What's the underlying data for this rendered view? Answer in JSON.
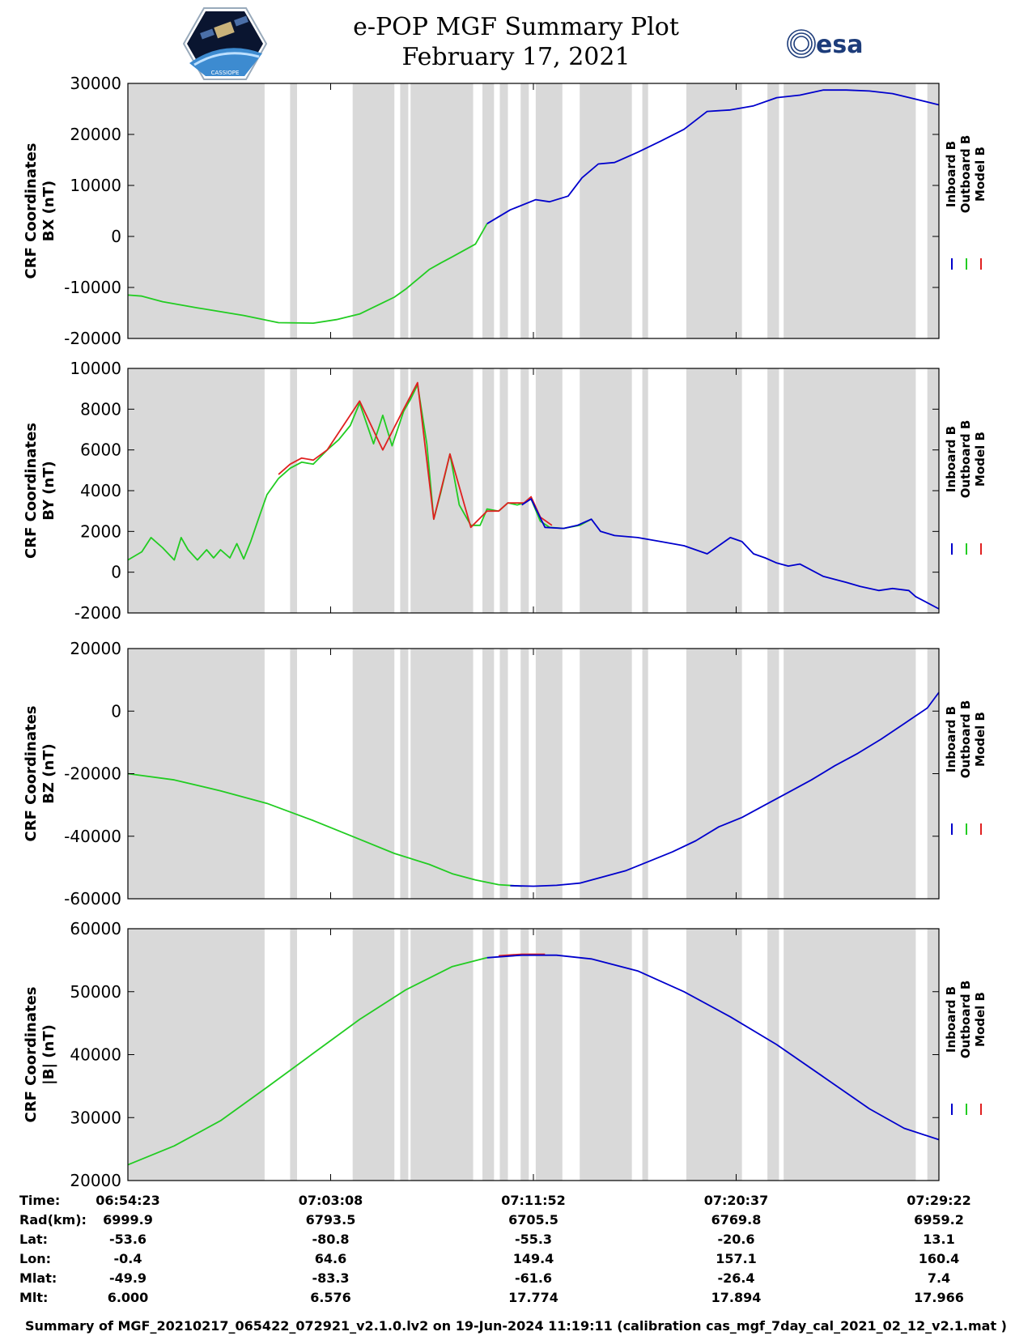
{
  "title": "e-POP MGF Summary Plot",
  "date": "February 17, 2021",
  "logos": {
    "left": "CASSIOPE",
    "right": "esa"
  },
  "legend": [
    "Inboard B",
    "Outboard B",
    "Model B"
  ],
  "colors": {
    "inboard": "#0000cc",
    "outboard": "#22cc22",
    "model": "#e02020",
    "shade": "#d9d9d9"
  },
  "chart_data": {
    "type": "line",
    "x_range_minutes": [
      0,
      35
    ],
    "time_ticks_minutes": [
      0,
      8.75,
      17.5,
      26.25,
      35
    ],
    "gray_intervals_minutes": [
      [
        0,
        5.9
      ],
      [
        7.0,
        7.3
      ],
      [
        9.7,
        11.5
      ],
      [
        11.75,
        12.1
      ],
      [
        12.2,
        14.9
      ],
      [
        15.3,
        15.8
      ],
      [
        16.05,
        16.4
      ],
      [
        16.95,
        17.3
      ],
      [
        17.6,
        18.75
      ],
      [
        19.5,
        21.75
      ],
      [
        22.2,
        22.45
      ],
      [
        24.1,
        26.5
      ],
      [
        27.6,
        28.1
      ],
      [
        28.3,
        34.0
      ],
      [
        34.5,
        35.0
      ]
    ],
    "panels": [
      {
        "ylabel": [
          "CRF Coordinates",
          "BX (nT)"
        ],
        "ylim": [
          -20000,
          30000
        ],
        "yticks": [
          -20000,
          -10000,
          0,
          10000,
          20000,
          30000
        ],
        "series": [
          {
            "name": "Outboard B",
            "x": [
              0,
              0.6,
              1.5,
              3,
              5,
              6.5,
              8,
              9,
              10,
              11,
              11.5,
              12,
              12.5,
              13,
              13.5,
              14,
              15,
              15.5
            ],
            "y": [
              -11500,
              -11700,
              -12800,
              -14000,
              -15500,
              -16900,
              -17000,
              -16300,
              -15200,
              -13000,
              -11900,
              -10300,
              -8400,
              -6500,
              -5200,
              -4000,
              -1500,
              2500
            ]
          },
          {
            "name": "Inboard B",
            "x": [
              15.5,
              16.5,
              17.6,
              18.2,
              19,
              19.6,
              20.3,
              21,
              22,
              23,
              24,
              25,
              26,
              27,
              28,
              29,
              30,
              31,
              32,
              33,
              34,
              35
            ],
            "y": [
              2500,
              5200,
              7200,
              6800,
              7900,
              11500,
              14200,
              14500,
              16500,
              18700,
              21000,
              24500,
              24800,
              25600,
              27200,
              27700,
              28700,
              28700,
              28500,
              28000,
              26900,
              25800
            ]
          }
        ]
      },
      {
        "ylabel": [
          "CRF Coordinates",
          "BY (nT)"
        ],
        "ylim": [
          -2000,
          10000
        ],
        "yticks": [
          -2000,
          0,
          2000,
          4000,
          6000,
          8000,
          10000
        ],
        "series": [
          {
            "name": "Outboard B",
            "x": [
              0,
              0.6,
              1,
              1.5,
              2,
              2.3,
              2.6,
              3,
              3.4,
              3.7,
              4,
              4.4,
              4.7,
              5,
              5.3,
              5.6,
              6,
              6.5,
              7,
              7.5,
              8,
              8.6,
              9.1,
              9.6,
              10,
              10.6,
              11,
              11.4,
              11.9,
              12.2,
              12.5,
              12.9,
              13.2,
              13.5,
              13.9,
              14.3,
              14.8,
              15.2,
              15.5,
              16,
              16.4,
              16.8,
              17.1,
              17.4,
              17.8,
              18.2,
              18.8,
              19.5,
              20
            ],
            "y": [
              600,
              1000,
              1700,
              1200,
              600,
              1700,
              1100,
              600,
              1100,
              700,
              1100,
              700,
              1400,
              650,
              1500,
              2500,
              3800,
              4600,
              5100,
              5400,
              5300,
              6000,
              6500,
              7200,
              8300,
              6300,
              7700,
              6200,
              7900,
              8500,
              9200,
              6300,
              2600,
              3900,
              5800,
              3300,
              2300,
              2300,
              3100,
              3000,
              3400,
              3300,
              3400,
              3600,
              2500,
              2200,
              2150,
              2300,
              2600
            ]
          },
          {
            "name": "Model B",
            "x": [
              6.5,
              7,
              7.5,
              8,
              8.6,
              10,
              11,
              11.9,
              12.5,
              13.2,
              13.9,
              14.8,
              15.5,
              16,
              16.4,
              17.1,
              17.4,
              17.8,
              18.3
            ],
            "y": [
              4800,
              5300,
              5600,
              5500,
              6000,
              8400,
              6000,
              8000,
              9300,
              2600,
              5800,
              2200,
              3000,
              3000,
              3400,
              3400,
              3700,
              2700,
              2300
            ]
          },
          {
            "name": "Inboard B",
            "x": [
              17,
              17.4,
              18,
              18.8,
              19.4,
              20,
              20.4,
              21,
              22,
              23,
              24,
              25,
              26,
              26.5,
              27,
              27.5,
              28,
              28.5,
              29,
              30,
              31,
              31.6,
              32.4,
              33,
              33.7,
              34,
              34.5,
              35
            ],
            "y": [
              3300,
              3600,
              2200,
              2150,
              2300,
              2600,
              2000,
              1800,
              1700,
              1500,
              1300,
              900,
              1700,
              1500,
              900,
              700,
              450,
              300,
              400,
              -200,
              -500,
              -700,
              -900,
              -800,
              -900,
              -1200,
              -1500,
              -1800
            ]
          }
        ]
      },
      {
        "ylabel": [
          "CRF Coordinates",
          "BZ (nT)"
        ],
        "ylim": [
          -60000,
          20000
        ],
        "yticks": [
          -60000,
          -40000,
          -20000,
          0,
          20000
        ],
        "series": [
          {
            "name": "Outboard B",
            "x": [
              0,
              2,
              4,
              6,
              8,
              10,
              11.5,
              13,
              14,
              15,
              16,
              17
            ],
            "y": [
              -20000,
              -22000,
              -25500,
              -29500,
              -35000,
              -41000,
              -45500,
              -49000,
              -52000,
              -54000,
              -55500,
              -56000
            ]
          },
          {
            "name": "Inboard B",
            "x": [
              16.5,
              17.5,
              18.5,
              19.5,
              20.5,
              21.5,
              22.5,
              23.5,
              24.5,
              25.5,
              26.5,
              27.5,
              28.5,
              29.5,
              30.5,
              31.5,
              32.5,
              33.5,
              34.5,
              35
            ],
            "y": [
              -55800,
              -56000,
              -55700,
              -55000,
              -53000,
              -51000,
              -48000,
              -45000,
              -41500,
              -37000,
              -34000,
              -30000,
              -26000,
              -22000,
              -17500,
              -13500,
              -9000,
              -4000,
              1000,
              6000
            ]
          }
        ]
      },
      {
        "ylabel": [
          "CRF Coordinates",
          "|B| (nT)"
        ],
        "ylim": [
          20000,
          60000
        ],
        "yticks": [
          20000,
          30000,
          40000,
          50000,
          60000
        ],
        "series": [
          {
            "name": "Outboard B",
            "x": [
              0,
              2,
              4,
              6,
              8,
              10,
              12,
              14,
              15.5
            ],
            "y": [
              22500,
              25500,
              29500,
              34800,
              40200,
              45600,
              50300,
              54000,
              55400
            ]
          },
          {
            "name": "Model B",
            "x": [
              16,
              17,
              18
            ],
            "y": [
              55700,
              55950,
              55950
            ]
          },
          {
            "name": "Inboard B",
            "x": [
              15.5,
              17,
              18.5,
              20,
              22,
              24,
              26,
              28,
              30,
              32,
              33.5,
              35
            ],
            "y": [
              55400,
              55800,
              55800,
              55200,
              53300,
              50000,
              46000,
              41600,
              36500,
              31400,
              28300,
              26500
            ]
          }
        ]
      }
    ]
  },
  "info_table": {
    "row_labels": [
      "Time:",
      "Rad(km):",
      "Lat:",
      "Lon:",
      "Mlat:",
      "Mlt:"
    ],
    "columns": [
      [
        "06:54:23",
        "6999.9",
        "-53.6",
        "-0.4",
        "-49.9",
        "6.000"
      ],
      [
        "07:03:08",
        "6793.5",
        "-80.8",
        "64.6",
        "-83.3",
        "6.576"
      ],
      [
        "07:11:52",
        "6705.5",
        "-55.3",
        "149.4",
        "-61.6",
        "17.774"
      ],
      [
        "07:20:37",
        "6769.8",
        "-20.6",
        "157.1",
        "-26.4",
        "17.894"
      ],
      [
        "07:29:22",
        "6959.2",
        "13.1",
        "160.4",
        "7.4",
        "17.966"
      ]
    ]
  },
  "footer": "Summary of MGF_20210217_065422_072921_v2.1.0.lv2 on 19-Jun-2024 11:19:11 (calibration cas_mgf_7day_cal_2021_02_12_v2.1.mat )"
}
